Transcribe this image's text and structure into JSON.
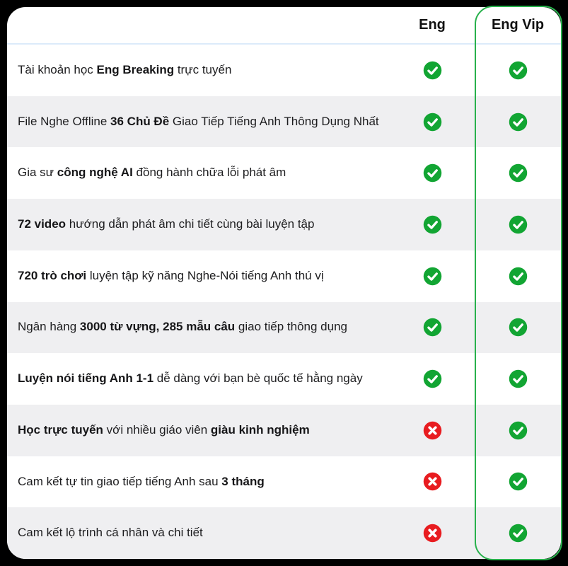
{
  "header": {
    "columns": [
      {
        "label": "Eng",
        "highlighted": false
      },
      {
        "label": "Eng Vip",
        "highlighted": true
      }
    ]
  },
  "table": {
    "rows": [
      {
        "segments": [
          {
            "text": "Tài khoản học ",
            "bold": false
          },
          {
            "text": "Eng Breaking",
            "bold": true
          },
          {
            "text": " trực tuyến",
            "bold": false
          }
        ],
        "eng": "check",
        "vip": "check"
      },
      {
        "segments": [
          {
            "text": "File Nghe Offline ",
            "bold": false
          },
          {
            "text": "36 Chủ Đề",
            "bold": true
          },
          {
            "text": " Giao Tiếp Tiếng Anh Thông Dụng Nhất",
            "bold": false
          }
        ],
        "eng": "check",
        "vip": "check"
      },
      {
        "segments": [
          {
            "text": "Gia sư ",
            "bold": false
          },
          {
            "text": "công nghệ AI",
            "bold": true
          },
          {
            "text": " đồng hành chữa lỗi phát âm",
            "bold": false
          }
        ],
        "eng": "check",
        "vip": "check"
      },
      {
        "segments": [
          {
            "text": "72 video",
            "bold": true
          },
          {
            "text": " hướng dẫn phát âm chi tiết cùng bài luyện tập",
            "bold": false
          }
        ],
        "eng": "check",
        "vip": "check"
      },
      {
        "segments": [
          {
            "text": "720 trò chơi",
            "bold": true
          },
          {
            "text": " luyện tập kỹ năng Nghe-Nói tiếng Anh thú vị",
            "bold": false
          }
        ],
        "eng": "check",
        "vip": "check"
      },
      {
        "segments": [
          {
            "text": "Ngân hàng ",
            "bold": false
          },
          {
            "text": "3000 từ vựng, 285 mẫu câu",
            "bold": true
          },
          {
            "text": " giao tiếp thông dụng",
            "bold": false
          }
        ],
        "eng": "check",
        "vip": "check"
      },
      {
        "segments": [
          {
            "text": "Luyện nói tiếng Anh 1-1",
            "bold": true
          },
          {
            "text": " dễ dàng với bạn bè quốc tế hằng ngày",
            "bold": false
          }
        ],
        "eng": "check",
        "vip": "check"
      },
      {
        "segments": [
          {
            "text": "Học trực tuyến",
            "bold": true
          },
          {
            "text": " với nhiều giáo viên ",
            "bold": false
          },
          {
            "text": "giàu kinh nghiệm",
            "bold": true
          }
        ],
        "eng": "cross",
        "vip": "check"
      },
      {
        "segments": [
          {
            "text": "Cam kết tự tin giao tiếp tiếng Anh sau ",
            "bold": false
          },
          {
            "text": "3 tháng",
            "bold": true
          }
        ],
        "eng": "cross",
        "vip": "check"
      },
      {
        "segments": [
          {
            "text": "Cam kết lộ trình cá nhân và chi tiết",
            "bold": false
          }
        ],
        "eng": "cross",
        "vip": "check"
      }
    ]
  },
  "icons": {
    "check": "check-icon",
    "cross": "cross-icon"
  },
  "colors": {
    "check_green": "#12a533",
    "cross_red": "#e81c20",
    "vip_border": "#28b14c",
    "row_alt": "#efeff1",
    "header_divider": "#dcebfa",
    "card_bg": "#ffffff",
    "page_bg": "#000000"
  }
}
